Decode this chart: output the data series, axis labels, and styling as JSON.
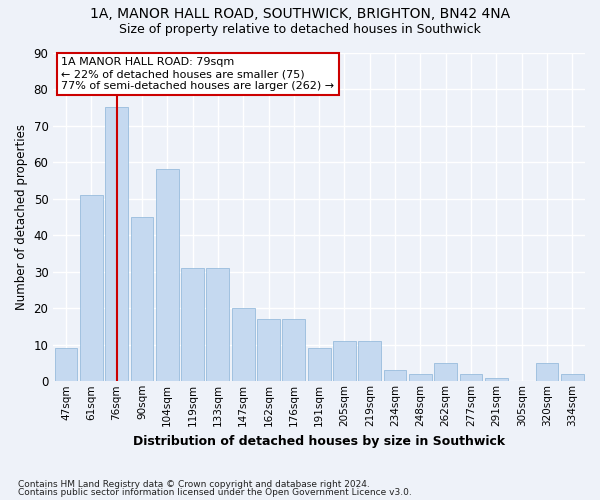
{
  "title1": "1A, MANOR HALL ROAD, SOUTHWICK, BRIGHTON, BN42 4NA",
  "title2": "Size of property relative to detached houses in Southwick",
  "xlabel": "Distribution of detached houses by size in Southwick",
  "ylabel": "Number of detached properties",
  "categories": [
    "47sqm",
    "61sqm",
    "76sqm",
    "90sqm",
    "104sqm",
    "119sqm",
    "133sqm",
    "147sqm",
    "162sqm",
    "176sqm",
    "191sqm",
    "205sqm",
    "219sqm",
    "234sqm",
    "248sqm",
    "262sqm",
    "277sqm",
    "291sqm",
    "305sqm",
    "320sqm",
    "334sqm"
  ],
  "values": [
    9,
    51,
    75,
    45,
    58,
    31,
    31,
    20,
    17,
    17,
    9,
    11,
    11,
    3,
    2,
    5,
    2,
    1,
    0,
    5,
    2
  ],
  "bar_color": "#c5d9f0",
  "bar_edgecolor": "#8ab4d8",
  "highlight_bar_index": 2,
  "highlight_color": "#cc0000",
  "annotation_line1": "1A MANOR HALL ROAD: 79sqm",
  "annotation_line2": "← 22% of detached houses are smaller (75)",
  "annotation_line3": "77% of semi-detached houses are larger (262) →",
  "annotation_box_facecolor": "#ffffff",
  "annotation_box_edgecolor": "#cc0000",
  "footnote1": "Contains HM Land Registry data © Crown copyright and database right 2024.",
  "footnote2": "Contains public sector information licensed under the Open Government Licence v3.0.",
  "bg_color": "#eef2f9",
  "grid_color": "#ffffff",
  "ylim": [
    0,
    90
  ],
  "yticks": [
    0,
    10,
    20,
    30,
    40,
    50,
    60,
    70,
    80,
    90
  ]
}
